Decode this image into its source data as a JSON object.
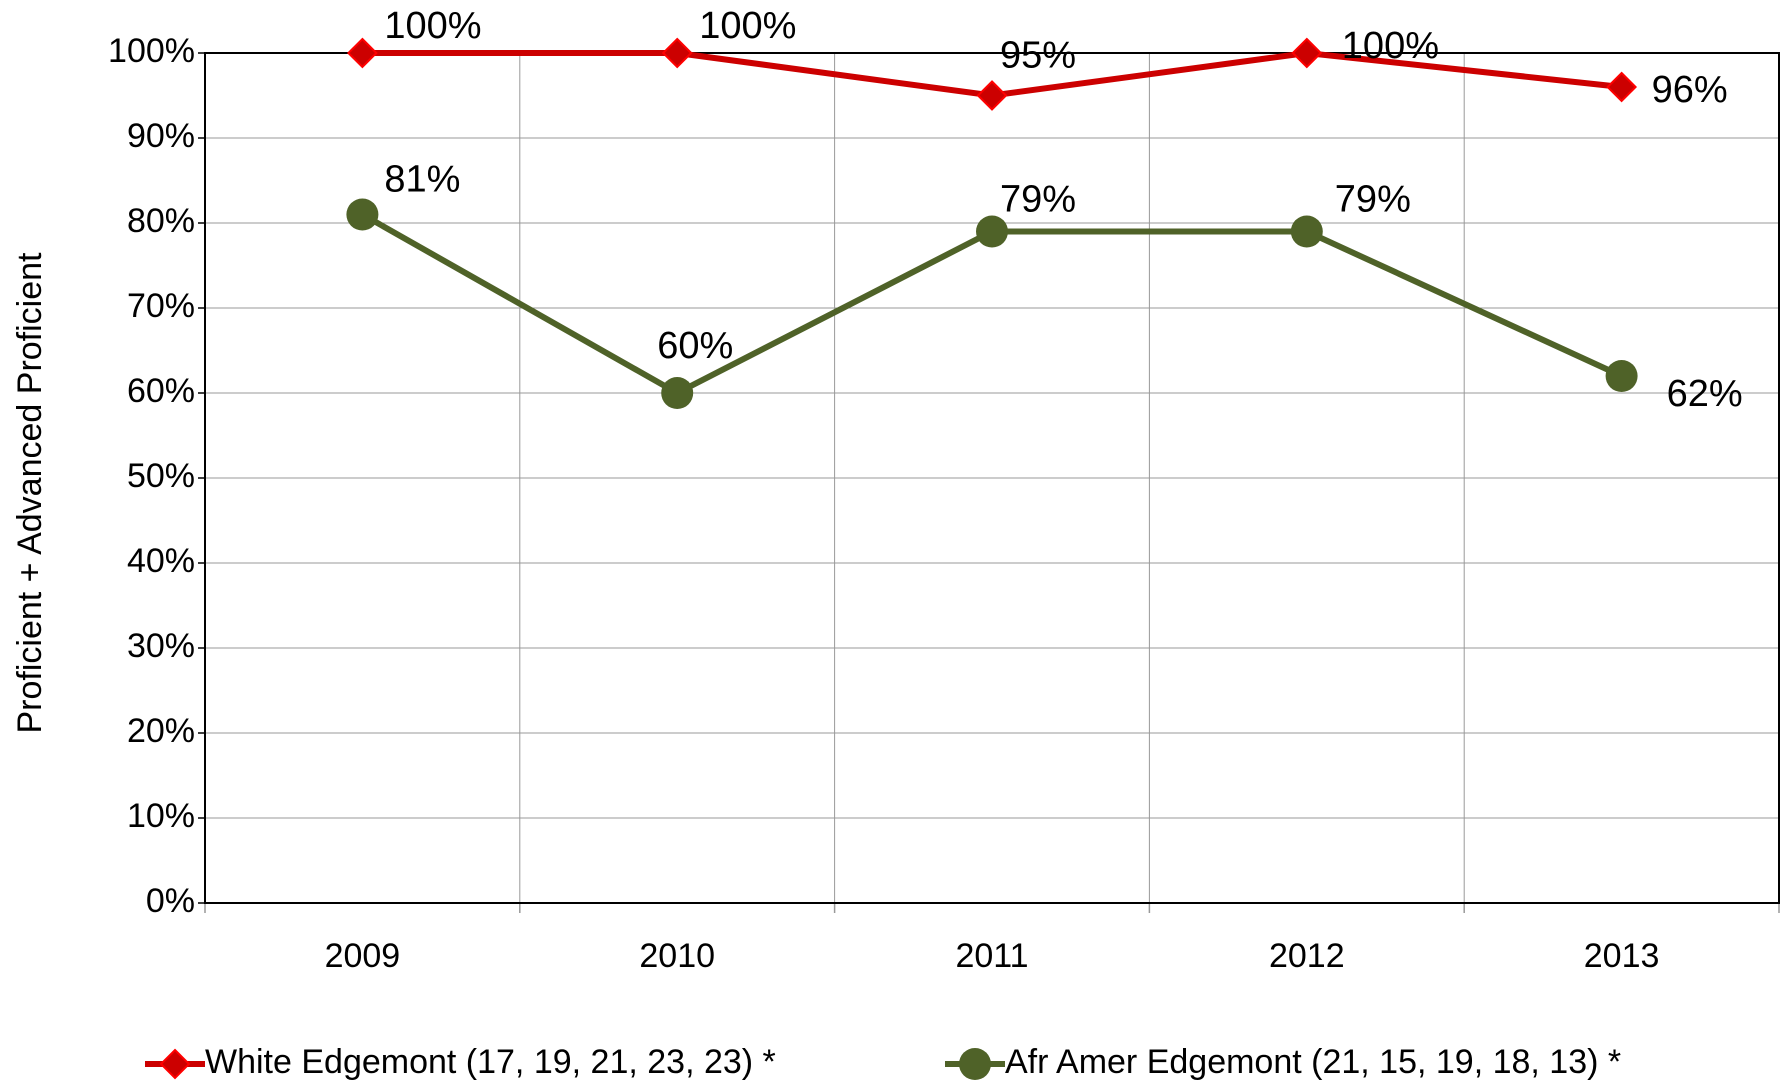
{
  "chart_data": {
    "type": "line",
    "y_axis_label": "Proficient + Advanced Proficient",
    "categories": [
      "2009",
      "2010",
      "2011",
      "2012",
      "2013"
    ],
    "series": [
      {
        "name": "White Edgemont (17, 19, 21, 23, 23) *",
        "color": "#cc0000",
        "marker": "diamond",
        "values": [
          100,
          100,
          95,
          100,
          96
        ],
        "value_labels": [
          "100%",
          "100%",
          "95%",
          "100%",
          "96%"
        ]
      },
      {
        "name": "Afr Amer Edgemont (21, 15, 19, 18, 13) *",
        "color": "#4f6228",
        "marker": "circle",
        "values": [
          81,
          60,
          79,
          79,
          62
        ],
        "value_labels": [
          "81%",
          "60%",
          "79%",
          "79%",
          "62%"
        ]
      }
    ],
    "ylim": [
      0,
      100
    ],
    "yticks": [
      {
        "value": 0,
        "label": "0%"
      },
      {
        "value": 10,
        "label": "10%"
      },
      {
        "value": 20,
        "label": "20%"
      },
      {
        "value": 30,
        "label": "30%"
      },
      {
        "value": 40,
        "label": "40%"
      },
      {
        "value": 50,
        "label": "50%"
      },
      {
        "value": 60,
        "label": "60%"
      },
      {
        "value": 70,
        "label": "70%"
      },
      {
        "value": 80,
        "label": "80%"
      },
      {
        "value": 90,
        "label": "90%"
      },
      {
        "value": 100,
        "label": "100%"
      }
    ],
    "grid": true
  }
}
